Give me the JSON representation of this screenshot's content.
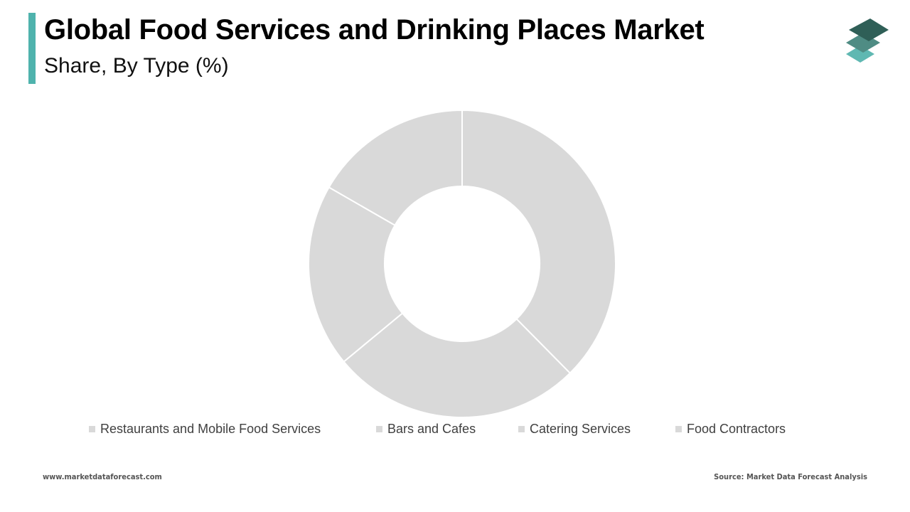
{
  "header": {
    "title": "Global Food Services and Drinking Places Market",
    "subtitle": "Share, By Type (%)"
  },
  "colors": {
    "accent": "#4fb3ad",
    "slice": "#d9d9d9",
    "logo_dark": "#2f5f57",
    "logo_mid": "#4f8c84",
    "logo_light": "#5fb8b2"
  },
  "logo": {
    "icon": "stacked-layers-icon"
  },
  "chart_data": {
    "type": "pie",
    "variant": "donut",
    "categories": [
      "Restaurants and Mobile Food Services",
      "Bars and Cafes",
      "Catering Services",
      "Food Contractors"
    ],
    "values": [
      37.6,
      26.4,
      19.3,
      16.7
    ],
    "legend_position": "bottom"
  },
  "footer": {
    "website": "www.marketdataforecast.com",
    "source": "Source: Market Data Forecast Analysis"
  }
}
